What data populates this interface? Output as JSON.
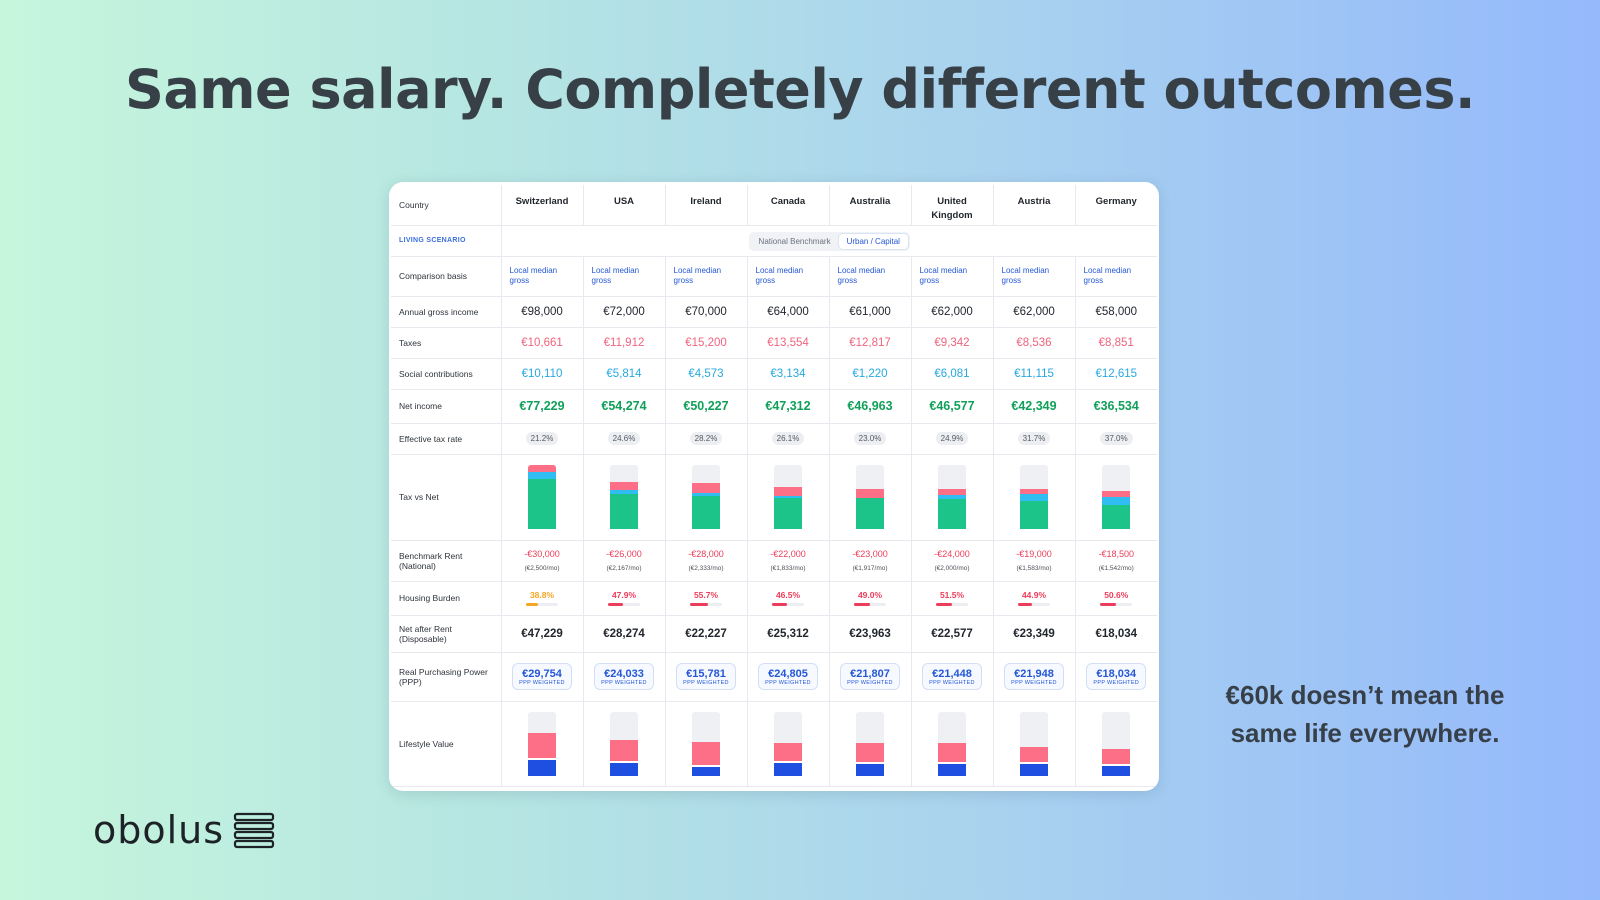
{
  "headline": "Same salary. Completely different outcomes.",
  "side_text_1": "€60k doesn’t mean the",
  "side_text_2": "same life everywhere.",
  "logo_text": "obolus",
  "table": {
    "country_label": "Country",
    "countries": [
      "Switzerland",
      "USA",
      "Ireland",
      "Canada",
      "Australia",
      "United Kingdom",
      "Austria",
      "Germany"
    ],
    "living_scenario_label": "LIVING SCENARIO",
    "scenario_options": [
      "National Benchmark",
      "Urban / Capital"
    ],
    "scenario_selected": "Urban / Capital",
    "comparison_basis_label": "Comparison basis",
    "comparison_basis": [
      "Local median gross",
      "Local median gross",
      "Local median gross",
      "Local median gross",
      "Local median gross",
      "Local median gross",
      "Local median gross",
      "Local median gross"
    ],
    "annual_gross_label": "Annual gross income",
    "annual_gross": [
      "€98,000",
      "€72,000",
      "€70,000",
      "€64,000",
      "€61,000",
      "€62,000",
      "€62,000",
      "€58,000"
    ],
    "taxes_label": "Taxes",
    "taxes": [
      "€10,661",
      "€11,912",
      "€15,200",
      "€13,554",
      "€12,817",
      "€9,342",
      "€8,536",
      "€8,851"
    ],
    "social_label": "Social contributions",
    "social": [
      "€10,110",
      "€5,814",
      "€4,573",
      "€3,134",
      "€1,220",
      "€6,081",
      "€11,115",
      "€12,615"
    ],
    "net_income_label": "Net income",
    "net_income": [
      "€77,229",
      "€54,274",
      "€50,227",
      "€47,312",
      "€46,963",
      "€46,577",
      "€42,349",
      "€36,534"
    ],
    "effective_tax_label": "Effective tax rate",
    "effective_tax": [
      "21.2%",
      "24.6%",
      "28.2%",
      "26.1%",
      "23.0%",
      "24.9%",
      "31.7%",
      "37.0%"
    ],
    "tax_vs_net_label": "Tax vs Net",
    "rent_label_1": "Benchmark Rent",
    "rent_label_2": "(National)",
    "rent": [
      "-€30,000",
      "-€26,000",
      "-€28,000",
      "-€22,000",
      "-€23,000",
      "-€24,000",
      "-€19,000",
      "-€18,500"
    ],
    "rent_monthly": [
      "(€2,500/mo)",
      "(€2,167/mo)",
      "(€2,333/mo)",
      "(€1,833/mo)",
      "(€1,917/mo)",
      "(€2,000/mo)",
      "(€1,583/mo)",
      "(€1,542/mo)"
    ],
    "housing_label": "Housing Burden",
    "housing_burden": [
      "38.8%",
      "47.9%",
      "55.7%",
      "46.5%",
      "49.0%",
      "51.5%",
      "44.9%",
      "50.6%"
    ],
    "housing_level": [
      0.388,
      0.479,
      0.557,
      0.465,
      0.49,
      0.515,
      0.449,
      0.506
    ],
    "net_after_rent_label_1": "Net after Rent",
    "net_after_rent_label_2": "(Disposable)",
    "net_after_rent": [
      "€47,229",
      "€28,274",
      "€22,227",
      "€25,312",
      "€23,963",
      "€22,577",
      "€23,349",
      "€18,034"
    ],
    "ppp_label_1": "Real Purchasing Power",
    "ppp_label_2": "(PPP)",
    "ppp": [
      "€29,754",
      "€24,033",
      "€15,781",
      "€24,805",
      "€21,807",
      "€21,448",
      "€21,948",
      "€18,034"
    ],
    "ppp_sub": "PPP WEIGHTED",
    "lifestyle_label": "Lifestyle Value"
  },
  "colors": {
    "tax": "#fd6f87",
    "social": "#30bdf2",
    "net": "#1dc489",
    "accent_blue": "#2457d6",
    "burden_red": "#ec3d5a",
    "burden_orange": "#f5a623"
  }
}
